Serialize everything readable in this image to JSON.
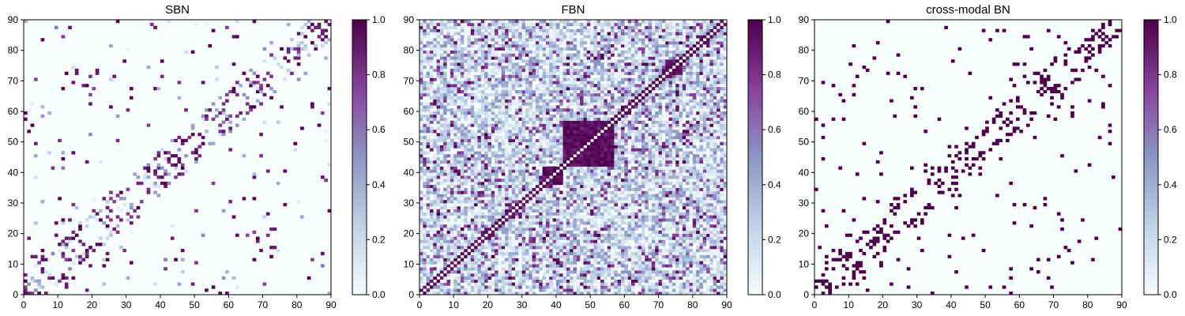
{
  "figure": {
    "panels": [
      {
        "title": "SBN"
      },
      {
        "title": "FBN"
      },
      {
        "title": "cross-modal BN"
      }
    ]
  },
  "chart_data": [
    {
      "type": "heatmap",
      "title": "SBN",
      "matrix_size": 90,
      "xlim": [
        0,
        90
      ],
      "ylim": [
        0,
        90
      ],
      "x_ticks": [
        "0",
        "10",
        "20",
        "30",
        "40",
        "50",
        "60",
        "70",
        "80",
        "90"
      ],
      "y_ticks": [
        "0",
        "10",
        "20",
        "30",
        "40",
        "50",
        "60",
        "70",
        "80",
        "90"
      ],
      "colorbar": {
        "range": [
          0,
          1
        ],
        "ticks": [
          "0.0",
          "0.2",
          "0.4",
          "0.6",
          "0.8",
          "1.0"
        ]
      },
      "colormap": [
        "#f7fcfd",
        "#bfd3e6",
        "#8c96c6",
        "#88419d",
        "#4d004b"
      ],
      "description_of_values": "sparse symmetric structural connectivity, mostly 0 with scattered high values",
      "sample_strong_cells": [
        [
          0,
          57
        ],
        [
          3,
          12
        ],
        [
          5,
          14
        ],
        [
          9,
          19
        ],
        [
          11,
          24
        ],
        [
          15,
          73
        ],
        [
          18,
          43
        ],
        [
          21,
          72
        ],
        [
          23,
          31
        ],
        [
          26,
          71
        ],
        [
          28,
          33
        ],
        [
          31,
          67
        ],
        [
          33,
          36
        ],
        [
          38,
          87
        ],
        [
          40,
          76
        ],
        [
          42,
          44
        ],
        [
          44,
          45
        ],
        [
          46,
          49
        ],
        [
          49,
          52
        ],
        [
          55,
          2
        ],
        [
          57,
          59
        ],
        [
          59,
          63
        ],
        [
          61,
          84
        ],
        [
          64,
          72
        ],
        [
          68,
          71
        ],
        [
          72,
          15
        ],
        [
          75,
          61
        ],
        [
          79,
          77
        ],
        [
          84,
          62
        ],
        [
          86,
          55
        ],
        [
          88,
          86
        ]
      ]
    },
    {
      "type": "heatmap",
      "title": "FBN",
      "matrix_size": 90,
      "xlim": [
        0,
        90
      ],
      "ylim": [
        0,
        90
      ],
      "x_ticks": [
        "0",
        "10",
        "20",
        "30",
        "40",
        "50",
        "60",
        "70",
        "80",
        "90"
      ],
      "y_ticks": [
        "0",
        "10",
        "20",
        "30",
        "40",
        "50",
        "60",
        "70",
        "80",
        "90"
      ],
      "colorbar": {
        "range": [
          0,
          1
        ],
        "ticks": [
          "0.0",
          "0.2",
          "0.4",
          "0.6",
          "0.8",
          "1.0"
        ]
      },
      "colormap": [
        "#f7fcfd",
        "#bfd3e6",
        "#8c96c6",
        "#88419d",
        "#4d004b"
      ],
      "description_of_values": "dense symmetric functional connectivity, strong diagonal and a strong block near 42-56",
      "strong_blocks": [
        [
          42,
          56,
          42,
          56
        ],
        [
          36,
          41,
          36,
          41
        ],
        [
          72,
          76,
          72,
          76
        ]
      ]
    },
    {
      "type": "heatmap",
      "title": "cross-modal BN",
      "matrix_size": 90,
      "xlim": [
        0,
        90
      ],
      "ylim": [
        0,
        90
      ],
      "x_ticks": [
        "0",
        "10",
        "20",
        "30",
        "40",
        "50",
        "60",
        "70",
        "80",
        "90"
      ],
      "y_ticks": [
        "0",
        "10",
        "20",
        "30",
        "40",
        "50",
        "60",
        "70",
        "80",
        "90"
      ],
      "colorbar": {
        "range": [
          0,
          1
        ],
        "ticks": [
          "0.0",
          "0.2",
          "0.4",
          "0.6",
          "0.8",
          "1.0"
        ]
      },
      "colormap": [
        "#f7fcfd",
        "#bfd3e6",
        "#8c96c6",
        "#88419d",
        "#4d004b"
      ],
      "description_of_values": "binary sparse symmetric matrix (0 or 1)",
      "sample_ones": [
        [
          0,
          57
        ],
        [
          3,
          12
        ],
        [
          5,
          8
        ],
        [
          7,
          14
        ],
        [
          9,
          19
        ],
        [
          11,
          24
        ],
        [
          15,
          73
        ],
        [
          18,
          43
        ],
        [
          21,
          72
        ],
        [
          23,
          31
        ],
        [
          26,
          71
        ],
        [
          28,
          33
        ],
        [
          31,
          67
        ],
        [
          33,
          36
        ],
        [
          38,
          87
        ],
        [
          40,
          76
        ],
        [
          42,
          44
        ],
        [
          44,
          46
        ],
        [
          46,
          49
        ],
        [
          49,
          52
        ],
        [
          55,
          2
        ],
        [
          57,
          59
        ],
        [
          59,
          63
        ],
        [
          61,
          84
        ],
        [
          64,
          72
        ],
        [
          68,
          71
        ],
        [
          75,
          61
        ],
        [
          79,
          77
        ],
        [
          84,
          62
        ],
        [
          86,
          55
        ],
        [
          88,
          86
        ]
      ]
    }
  ]
}
